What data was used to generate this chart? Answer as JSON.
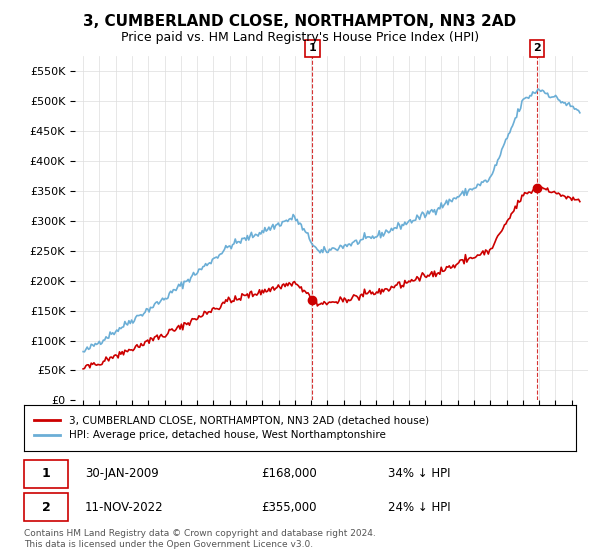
{
  "title": "3, CUMBERLAND CLOSE, NORTHAMPTON, NN3 2AD",
  "subtitle": "Price paid vs. HM Land Registry's House Price Index (HPI)",
  "ylim": [
    0,
    575000
  ],
  "yticks": [
    0,
    50000,
    100000,
    150000,
    200000,
    250000,
    300000,
    350000,
    400000,
    450000,
    500000,
    550000
  ],
  "ytick_labels": [
    "£0",
    "£50K",
    "£100K",
    "£150K",
    "£200K",
    "£250K",
    "£300K",
    "£350K",
    "£400K",
    "£450K",
    "£500K",
    "£550K"
  ],
  "sale1_date": 2009.08,
  "sale1_price": 168000,
  "sale2_date": 2022.87,
  "sale2_price": 355000,
  "hpi_color": "#6baed6",
  "price_color": "#cc0000",
  "legend_entry1": "3, CUMBERLAND CLOSE, NORTHAMPTON, NN3 2AD (detached house)",
  "legend_entry2": "HPI: Average price, detached house, West Northamptonshire",
  "annotation1_date": "30-JAN-2009",
  "annotation1_price": "£168,000",
  "annotation1_hpi": "34% ↓ HPI",
  "annotation2_date": "11-NOV-2022",
  "annotation2_price": "£355,000",
  "annotation2_hpi": "24% ↓ HPI",
  "footer": "Contains HM Land Registry data © Crown copyright and database right 2024.\nThis data is licensed under the Open Government Licence v3.0.",
  "background_color": "#ffffff",
  "grid_color": "#dddddd"
}
